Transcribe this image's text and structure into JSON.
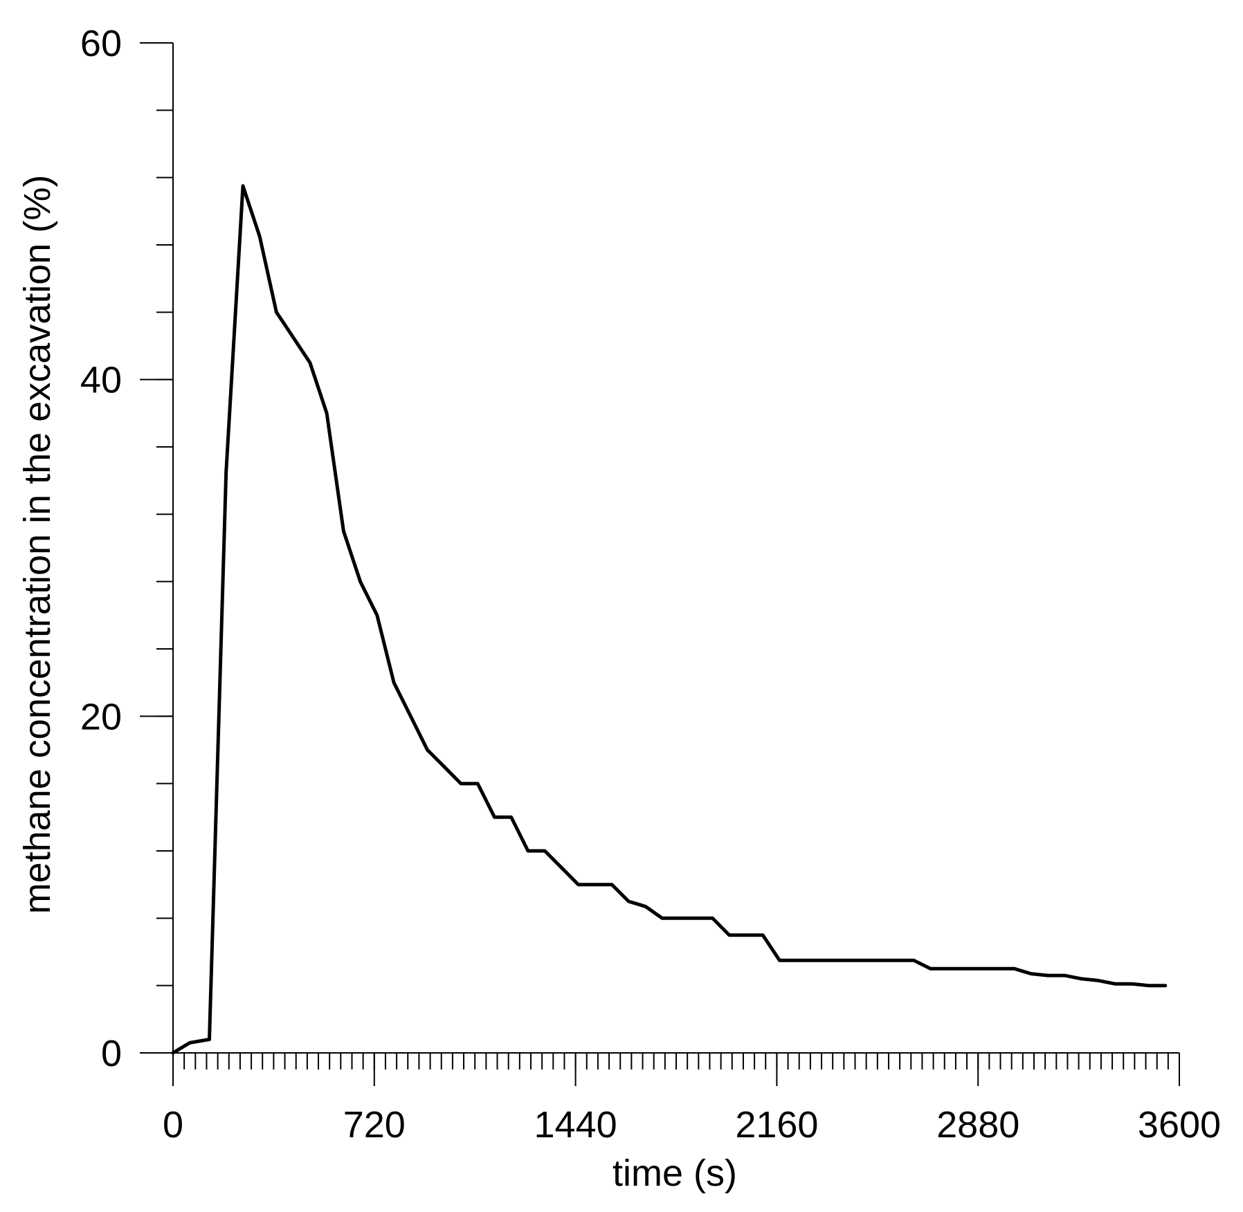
{
  "chart_data": {
    "type": "line",
    "xlabel": "time (s)",
    "ylabel": "methane concentration in the excavation (%)",
    "xlim": [
      0,
      3600
    ],
    "ylim": [
      0,
      60
    ],
    "x_ticks": [
      0,
      720,
      1440,
      2160,
      2880,
      3600
    ],
    "x_tick_labels": [
      "0",
      "720",
      "1440",
      "2160",
      "2880",
      "3600"
    ],
    "x_minor_step": 40,
    "y_ticks": [
      0,
      20,
      40,
      60
    ],
    "y_tick_labels": [
      "0",
      "20",
      "40",
      "60"
    ],
    "y_minor_step": 4,
    "grid": false,
    "legend": "none",
    "line_color": "#000000",
    "series": [
      {
        "x": [
          0,
          60,
          130,
          190,
          250,
          310,
          370,
          430,
          490,
          550,
          610,
          670,
          730,
          790,
          850,
          910,
          970,
          1030,
          1090,
          1150,
          1210,
          1270,
          1330,
          1390,
          1450,
          1510,
          1570,
          1630,
          1690,
          1750,
          1810,
          1870,
          1930,
          1990,
          2050,
          2110,
          2170,
          2230,
          2290,
          2350,
          2410,
          2470,
          2530,
          2590,
          2650,
          2710,
          2770,
          2830,
          2890,
          2950,
          3010,
          3070,
          3130,
          3190,
          3250,
          3310,
          3370,
          3430,
          3490,
          3550
        ],
        "y": [
          0,
          0.6,
          0.8,
          34.5,
          51.5,
          48.5,
          44,
          42.5,
          41,
          38,
          31,
          28,
          26,
          22,
          20,
          18,
          17,
          16,
          16,
          14,
          14,
          12,
          12,
          11,
          10,
          10,
          10,
          9,
          8.7,
          8,
          8,
          8,
          8,
          7,
          7,
          7,
          5.5,
          5.5,
          5.5,
          5.5,
          5.5,
          5.5,
          5.5,
          5.5,
          5.5,
          5,
          5,
          5,
          5,
          5,
          5,
          4.7,
          4.6,
          4.6,
          4.4,
          4.3,
          4.1,
          4.1,
          4,
          4
        ]
      }
    ]
  }
}
